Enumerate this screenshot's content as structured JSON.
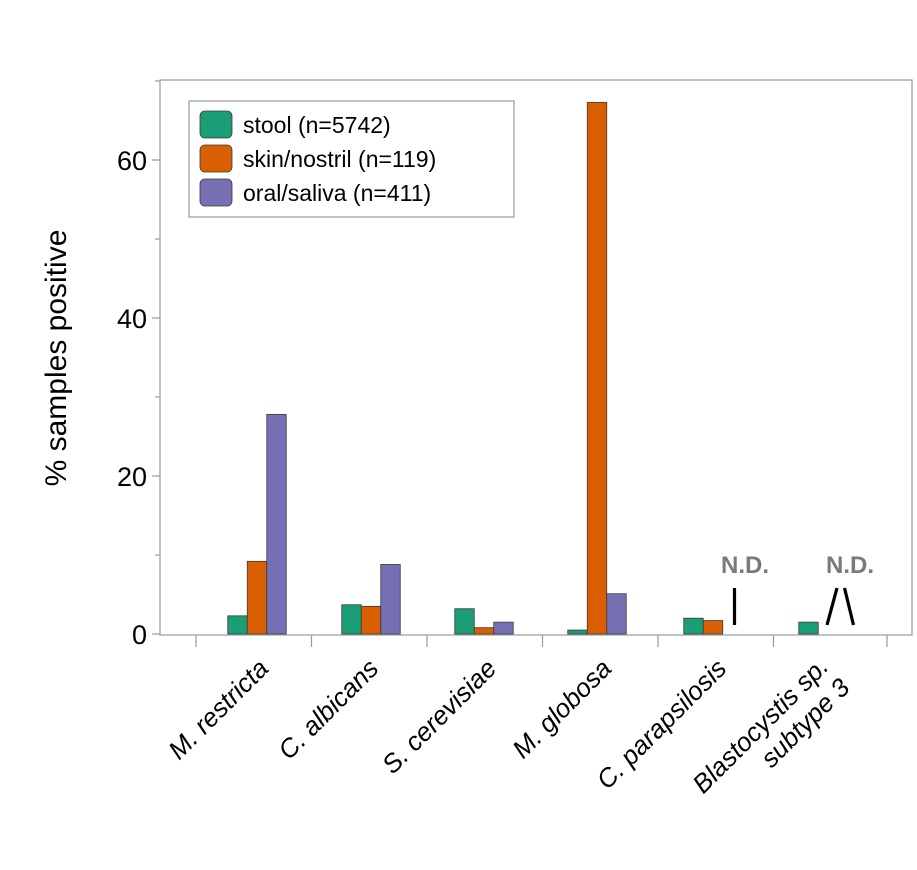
{
  "chart_data": {
    "type": "bar",
    "ylabel": "% samples positive",
    "xlabel": "",
    "ylim": [
      0,
      70
    ],
    "yticks": [
      0,
      20,
      40,
      60
    ],
    "y_minor_tick_step": 10,
    "grid": false,
    "legend": {
      "placement": "top-left"
    },
    "categories": [
      {
        "lines": [
          "M. restricta"
        ]
      },
      {
        "lines": [
          "C. albicans"
        ]
      },
      {
        "lines": [
          "S. cerevisiae"
        ]
      },
      {
        "lines": [
          "M. globosa"
        ]
      },
      {
        "lines": [
          "C. parapsilosis"
        ]
      },
      {
        "lines": [
          "Blastocystis sp.",
          "subtype 3"
        ]
      }
    ],
    "series": [
      {
        "name": "stool (n=5742)",
        "color": "#1b9e77",
        "values": [
          2.3,
          3.7,
          3.2,
          0.5,
          2.0,
          1.5
        ]
      },
      {
        "name": "skin/nostril (n=119)",
        "color": "#d95f02",
        "values": [
          9.2,
          3.5,
          0.8,
          67.3,
          1.7,
          null
        ]
      },
      {
        "name": "oral/saliva (n=411)",
        "color": "#7570b3",
        "values": [
          27.8,
          8.8,
          1.5,
          5.1,
          null,
          null
        ]
      }
    ],
    "annotations": [
      {
        "text": "N.D.",
        "category_index": 4,
        "series": [
          2
        ]
      },
      {
        "text": "N.D.",
        "category_index": 5,
        "series": [
          1,
          2
        ]
      }
    ]
  }
}
